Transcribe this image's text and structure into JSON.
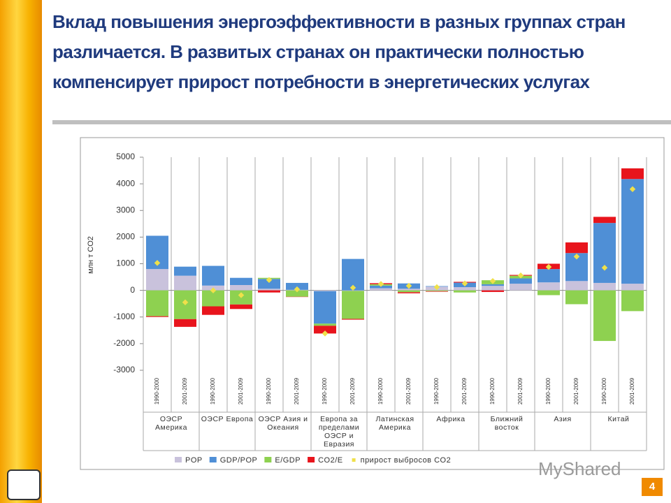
{
  "chart_data": {
    "type": "stacked_bar",
    "title": "Вклад повышения энергоэффективности в разных группах стран различается. В развитых странах он практически полностью компенсирует прирост потребности в энергетических услугах",
    "y_label": "млн т CO2",
    "categories": [
      "1990-2000",
      "2001-2009",
      "1990-2000",
      "2001-2009",
      "1990-2000",
      "2001-2009",
      "1990-2000",
      "2001-2009",
      "1990-2000",
      "2001-2009",
      "1990-2000",
      "2001-2009",
      "1990-2000",
      "2001-2009",
      "1990-2000",
      "2001-2009",
      "1990-2000",
      "2001-2009"
    ],
    "groups": [
      "ОЭСР Америка",
      "ОЭСР Европа",
      "ОЭСР Азия и Океания",
      "Европа за пределами ОЭСР и Евразия",
      "Латинская Америка",
      "Африка",
      "Ближний восток",
      "Азия",
      "Китай"
    ],
    "series": [
      {
        "name": "POP",
        "color": "#c9c2dc",
        "values": [
          800,
          550,
          180,
          200,
          60,
          20,
          -30,
          -20,
          80,
          60,
          140,
          120,
          170,
          250,
          300,
          350,
          280,
          250
        ]
      },
      {
        "name": "GDP/POP",
        "color": "#4f8fd6",
        "values": [
          1250,
          340,
          740,
          270,
          370,
          260,
          -1220,
          1180,
          100,
          200,
          20,
          170,
          60,
          200,
          500,
          1050,
          2250,
          3930
        ]
      },
      {
        "name": "E/GDP",
        "color": "#8ed150",
        "values": [
          -970,
          -1080,
          -600,
          -530,
          40,
          -240,
          -80,
          -1050,
          50,
          -70,
          -30,
          -80,
          150,
          100,
          -180,
          -520,
          -1900,
          -780
        ]
      },
      {
        "name": "CO2/E",
        "color": "#e8141c",
        "values": [
          -30,
          -290,
          -320,
          -170,
          -80,
          -10,
          -290,
          -30,
          40,
          -40,
          -20,
          30,
          -60,
          30,
          200,
          400,
          230,
          400
        ]
      }
    ],
    "points": {
      "name": "прирост выбросов CO2",
      "color": "#efe04a",
      "values": [
        1030,
        -450,
        0,
        -180,
        390,
        40,
        -1620,
        100,
        240,
        170,
        120,
        260,
        350,
        560,
        880,
        1270,
        850,
        3800
      ]
    },
    "ylim": [
      -3000,
      5000
    ],
    "yticks": [
      -3000,
      -2000,
      -1000,
      0,
      1000,
      2000,
      3000,
      4000,
      5000
    ],
    "grid": false
  },
  "page_number": "4",
  "watermark": "MyShared"
}
